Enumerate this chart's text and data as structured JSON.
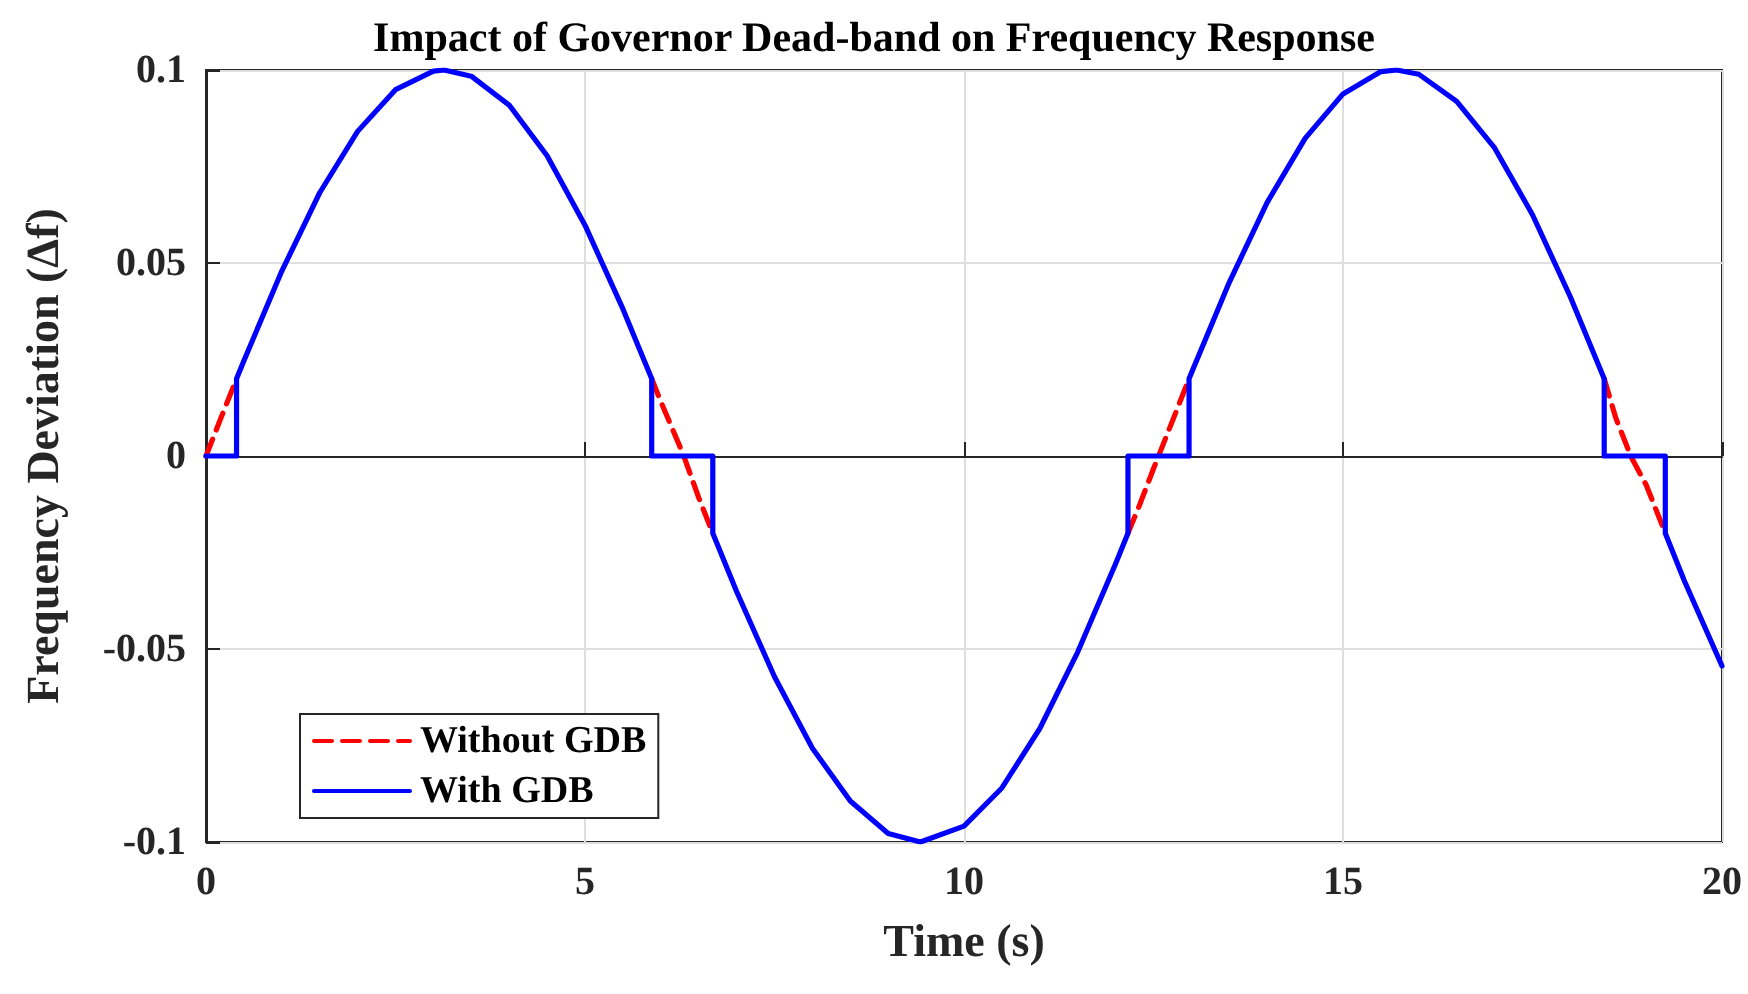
{
  "chart_data": {
    "type": "line",
    "title": "Impact of Governor Dead-band on Frequency Response",
    "xlabel": "Time (s)",
    "ylabel": "Frequency Deviation (Δf)",
    "xlim": [
      0,
      20
    ],
    "xticks": [
      0,
      5,
      10,
      15,
      20
    ],
    "ylim": [
      -0.1,
      0.1
    ],
    "yticks": [
      -0.1,
      -0.05,
      0,
      0.05,
      0.1
    ],
    "grid": true,
    "legend": "bottom left",
    "marker": "none",
    "series": [
      {
        "name": "Without GDB",
        "color": "#ff0000",
        "line_style": "dashed",
        "x": [
          0,
          0.2,
          0.403,
          3,
          5.88,
          6,
          6.3,
          6.5,
          6.686,
          9,
          12.163,
          12.3,
          12.5,
          12.7,
          12.969,
          15,
          18.446,
          18.6,
          18.8,
          19,
          19.252
        ],
        "values": [
          0,
          0.01,
          0.02,
          null,
          0.02,
          0.0141,
          0.0002,
          -0.0108,
          -0.02,
          null,
          -0.02,
          -0.0135,
          -0.0033,
          0.0066,
          0.02,
          null,
          0.02,
          0.0098,
          -0.0002,
          -0.0075,
          -0.02
        ]
      },
      {
        "name": "With GDB",
        "color": "#0000ff",
        "line_style": "solid",
        "x": [
          0,
          0.403,
          0.403,
          0.5,
          1,
          1.5,
          2,
          2.5,
          3,
          3.142,
          3.5,
          4,
          4.5,
          5,
          5.5,
          5.88,
          5.88,
          6.686,
          6.686,
          7,
          7.5,
          8,
          8.5,
          9,
          9.425,
          10,
          10.5,
          11,
          11.5,
          12,
          12.163,
          12.163,
          12.969,
          12.969,
          13,
          13.5,
          14,
          14.5,
          15,
          15.5,
          15.708,
          16,
          16.5,
          17,
          17.5,
          18,
          18.446,
          18.446,
          19.252,
          19.252,
          19.5,
          20
        ],
        "values": [
          0,
          0,
          0.02,
          0.0247,
          0.0479,
          0.0682,
          0.0841,
          0.0949,
          0.0997,
          0.1,
          0.0984,
          0.0909,
          0.0778,
          0.0598,
          0.0381,
          0.02,
          0,
          0,
          -0.02,
          -0.0351,
          -0.0572,
          -0.0757,
          -0.0894,
          -0.0978,
          -0.1,
          -0.0959,
          -0.086,
          -0.0706,
          -0.0508,
          -0.0279,
          -0.02,
          0,
          0,
          0.02,
          0.0215,
          0.045,
          0.0657,
          0.0823,
          0.0938,
          0.0996,
          0.1,
          0.0989,
          0.0919,
          0.0798,
          0.0625,
          0.0412,
          0.02,
          0,
          0,
          -0.02,
          -0.0322,
          -0.0544
        ]
      }
    ]
  }
}
